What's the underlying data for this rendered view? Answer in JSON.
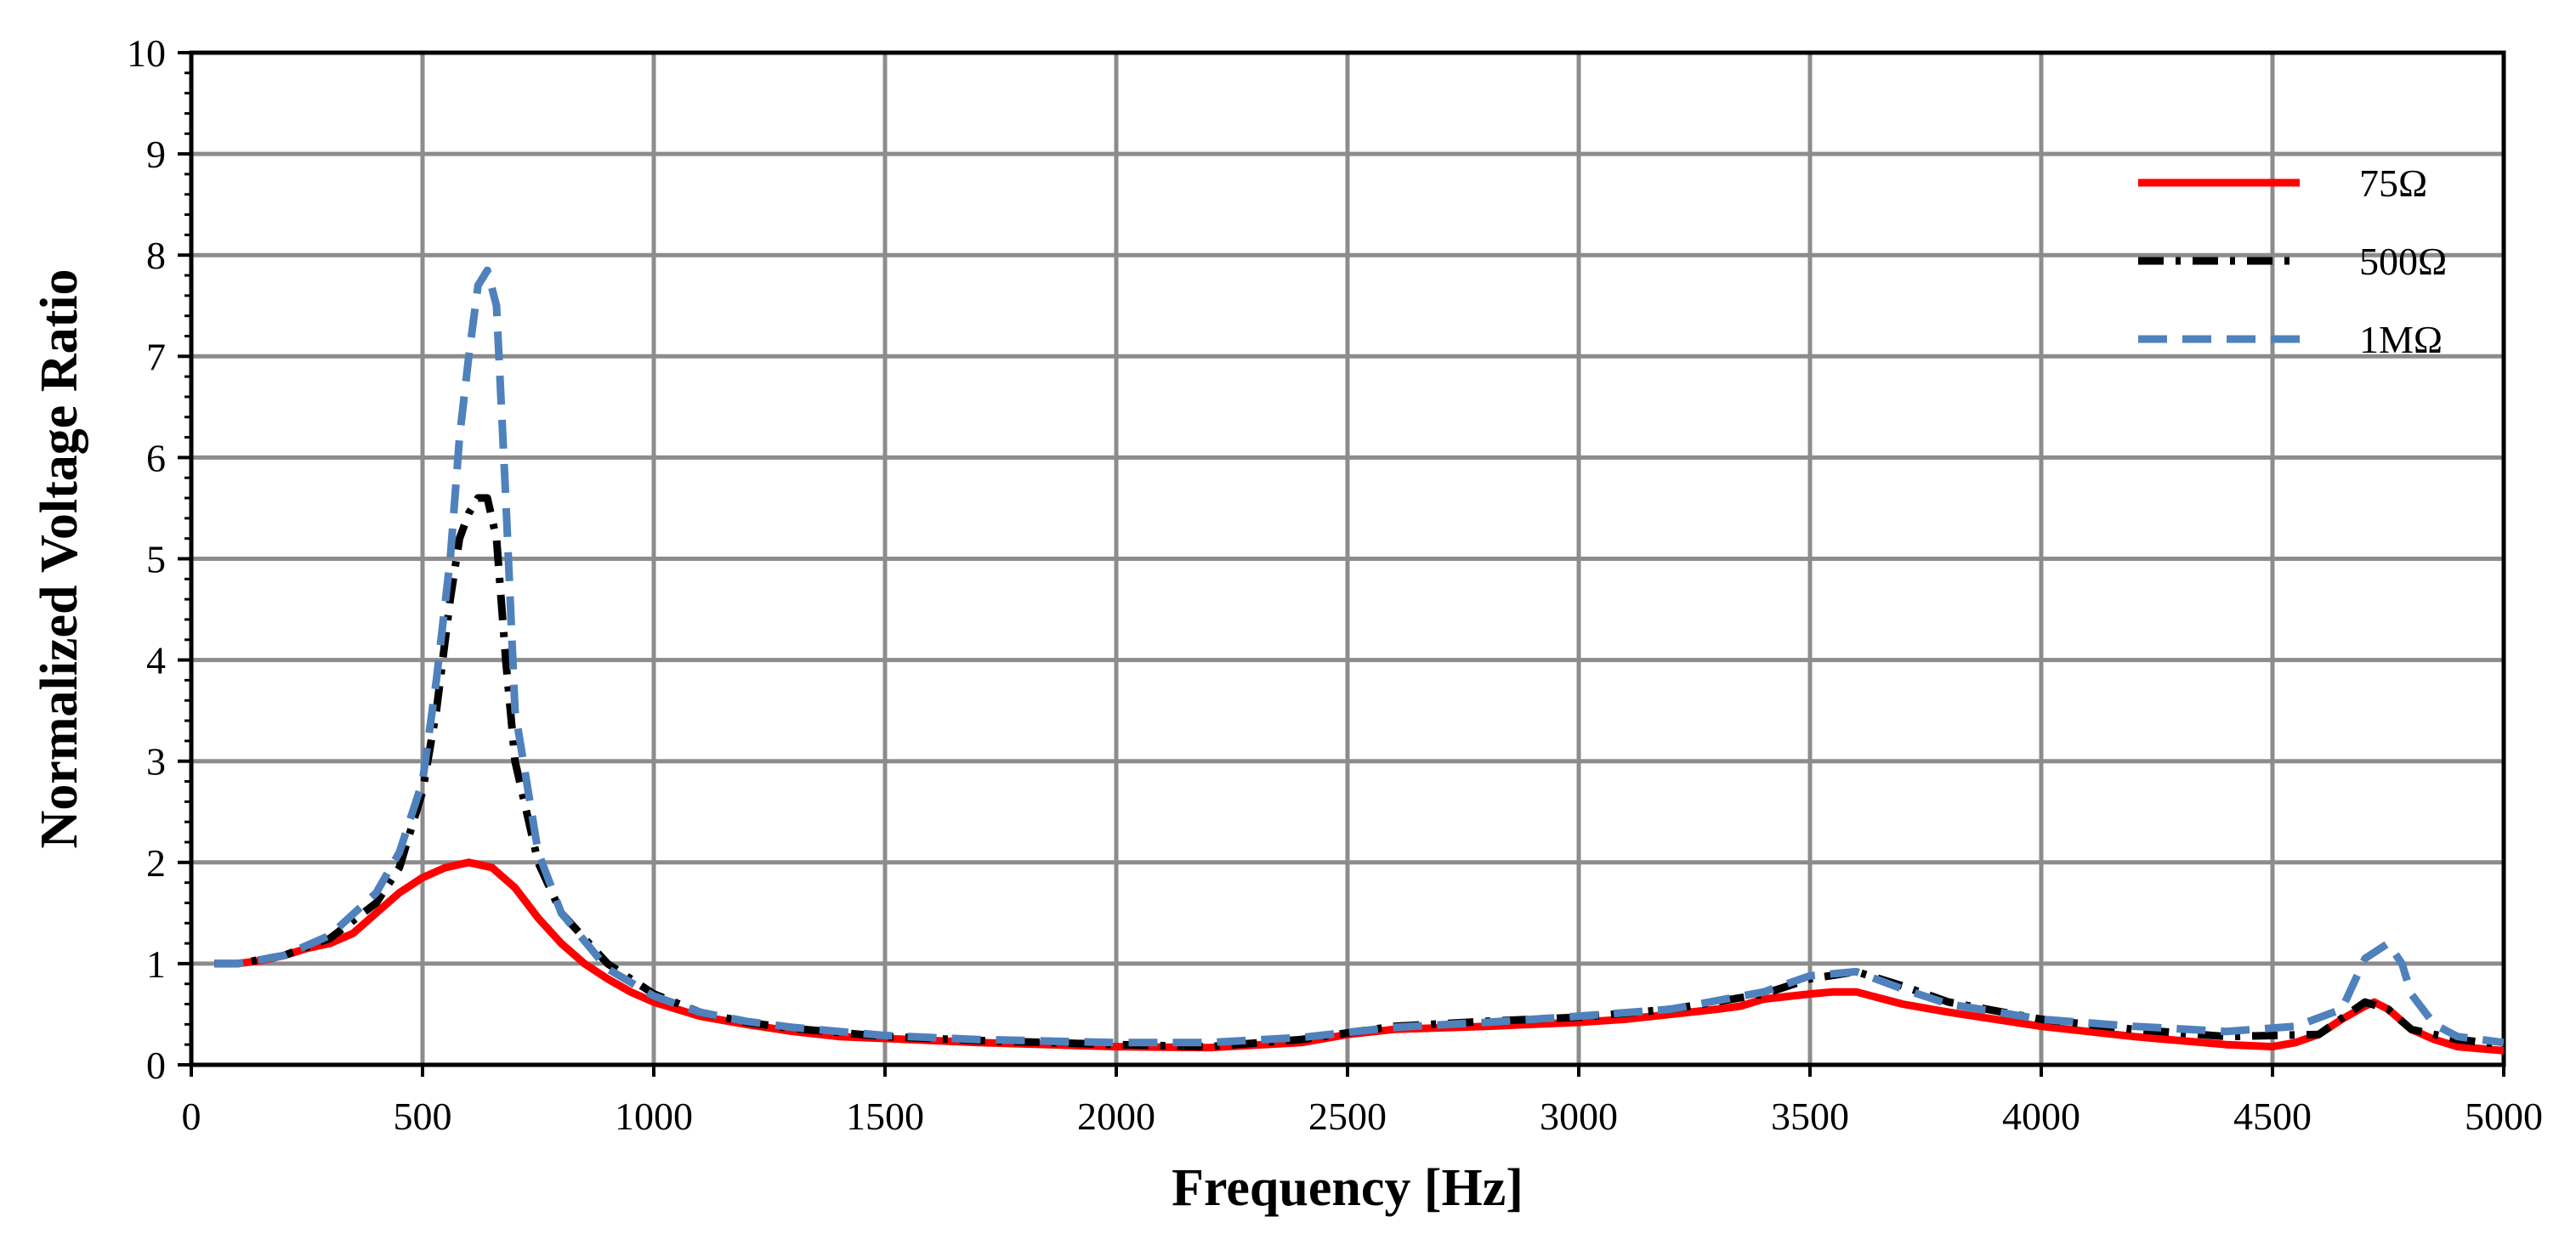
{
  "chart_data": {
    "type": "line",
    "title": "",
    "xlabel": "Frequency [Hz]",
    "ylabel": "Normalized Voltage Ratio",
    "xlim": [
      0,
      5000
    ],
    "ylim": [
      0,
      10
    ],
    "x_ticks": [
      "0",
      "500",
      "1000",
      "1500",
      "2000",
      "2500",
      "3000",
      "3500",
      "4000",
      "4500",
      "5000"
    ],
    "y_ticks": [
      "0",
      "1",
      "2",
      "3",
      "4",
      "5",
      "6",
      "7",
      "8",
      "9",
      "10"
    ],
    "x_tick_values": [
      0,
      500,
      1000,
      1500,
      2000,
      2500,
      3000,
      3500,
      4000,
      4500,
      5000
    ],
    "y_tick_values": [
      0,
      1,
      2,
      3,
      4,
      5,
      6,
      7,
      8,
      9,
      10
    ],
    "grid": true,
    "legend_position": "top-right",
    "series": [
      {
        "name": "75Ω",
        "color": "#ff0000",
        "style": "solid",
        "x": [
          50,
          100,
          150,
          200,
          250,
          300,
          350,
          400,
          450,
          500,
          550,
          600,
          650,
          700,
          750,
          800,
          850,
          900,
          950,
          1000,
          1100,
          1200,
          1300,
          1400,
          1500,
          1700,
          2000,
          2200,
          2400,
          2500,
          2600,
          2800,
          3000,
          3100,
          3200,
          3300,
          3350,
          3400,
          3500,
          3550,
          3600,
          3700,
          3800,
          4000,
          4200,
          4400,
          4500,
          4550,
          4600,
          4650,
          4700,
          4720,
          4750,
          4800,
          4850,
          4900,
          5000
        ],
        "y": [
          1.0,
          1.0,
          1.03,
          1.08,
          1.15,
          1.2,
          1.3,
          1.5,
          1.7,
          1.85,
          1.95,
          2.0,
          1.95,
          1.75,
          1.45,
          1.2,
          1.0,
          0.85,
          0.72,
          0.62,
          0.48,
          0.4,
          0.33,
          0.28,
          0.26,
          0.22,
          0.18,
          0.17,
          0.22,
          0.3,
          0.35,
          0.38,
          0.42,
          0.45,
          0.5,
          0.55,
          0.58,
          0.65,
          0.7,
          0.72,
          0.72,
          0.6,
          0.52,
          0.38,
          0.28,
          0.2,
          0.18,
          0.22,
          0.3,
          0.45,
          0.58,
          0.62,
          0.55,
          0.35,
          0.25,
          0.18,
          0.14
        ]
      },
      {
        "name": "500Ω",
        "color": "#000000",
        "style": "dashdot",
        "x": [
          50,
          100,
          200,
          300,
          400,
          450,
          500,
          530,
          560,
          580,
          600,
          620,
          640,
          660,
          680,
          700,
          750,
          800,
          900,
          1000,
          1100,
          1200,
          1300,
          1500,
          1700,
          2000,
          2200,
          2400,
          2600,
          2800,
          3000,
          3200,
          3400,
          3500,
          3600,
          3700,
          3800,
          4000,
          4200,
          4400,
          4600,
          4700,
          4750,
          4800,
          4900,
          5000
        ],
        "y": [
          1.0,
          1.0,
          1.08,
          1.25,
          1.6,
          1.95,
          2.7,
          3.5,
          4.6,
          5.2,
          5.45,
          5.6,
          5.6,
          5.2,
          4.0,
          3.0,
          2.0,
          1.5,
          1.0,
          0.7,
          0.52,
          0.42,
          0.36,
          0.28,
          0.24,
          0.2,
          0.18,
          0.25,
          0.38,
          0.43,
          0.47,
          0.55,
          0.7,
          0.85,
          0.92,
          0.78,
          0.62,
          0.45,
          0.35,
          0.28,
          0.3,
          0.62,
          0.55,
          0.35,
          0.25,
          0.2
        ]
      },
      {
        "name": "1MΩ",
        "color": "#4f81bd",
        "style": "dashed",
        "x": [
          50,
          100,
          200,
          300,
          400,
          450,
          500,
          530,
          560,
          580,
          600,
          620,
          640,
          660,
          680,
          700,
          750,
          800,
          900,
          1000,
          1100,
          1200,
          1300,
          1500,
          1700,
          2000,
          2200,
          2400,
          2600,
          2800,
          3000,
          3200,
          3400,
          3500,
          3600,
          3700,
          3800,
          4000,
          4200,
          4400,
          4550,
          4650,
          4700,
          4750,
          4780,
          4800,
          4850,
          4900,
          5000
        ],
        "y": [
          1.0,
          1.0,
          1.08,
          1.28,
          1.7,
          2.1,
          2.8,
          3.8,
          5.0,
          6.2,
          7.0,
          7.7,
          7.85,
          7.5,
          5.6,
          3.5,
          2.1,
          1.5,
          0.95,
          0.68,
          0.52,
          0.43,
          0.37,
          0.29,
          0.25,
          0.22,
          0.22,
          0.27,
          0.37,
          0.42,
          0.48,
          0.55,
          0.72,
          0.88,
          0.92,
          0.75,
          0.6,
          0.45,
          0.38,
          0.33,
          0.38,
          0.55,
          1.05,
          1.2,
          1.0,
          0.7,
          0.4,
          0.28,
          0.22
        ]
      }
    ]
  }
}
